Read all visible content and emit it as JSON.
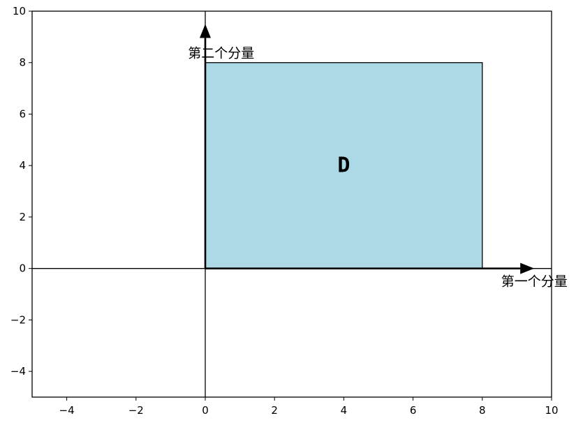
{
  "chart_data": {
    "type": "area",
    "title": "",
    "xlabel": "",
    "ylabel": "",
    "xlim": [
      -5,
      10
    ],
    "ylim": [
      -5,
      10
    ],
    "xticks": [
      -4,
      -2,
      0,
      2,
      4,
      6,
      8,
      10
    ],
    "yticks": [
      -4,
      -2,
      0,
      2,
      4,
      6,
      8,
      10
    ],
    "xtick_labels": [
      "−4",
      "−2",
      "0",
      "2",
      "4",
      "6",
      "8",
      "10"
    ],
    "ytick_labels": [
      "−4",
      "−2",
      "0",
      "2",
      "4",
      "6",
      "8",
      "10"
    ],
    "grid": false,
    "region": {
      "label": "D",
      "x": [
        0,
        8
      ],
      "y": [
        0,
        8
      ],
      "label_position": [
        4,
        4
      ],
      "fill": "#add8e6",
      "edge": "#000000"
    },
    "axis_lines": {
      "x": 0,
      "y": 0,
      "color": "#000000"
    },
    "arrows": [
      {
        "from": [
          0,
          0
        ],
        "to": [
          9.5,
          0
        ],
        "label": "第一个分量",
        "label_at": [
          9.5,
          -0.3
        ]
      },
      {
        "from": [
          0,
          0
        ],
        "to": [
          0,
          9.5
        ],
        "label": "第二个分量",
        "label_at": [
          -0.5,
          8.2
        ]
      }
    ]
  }
}
